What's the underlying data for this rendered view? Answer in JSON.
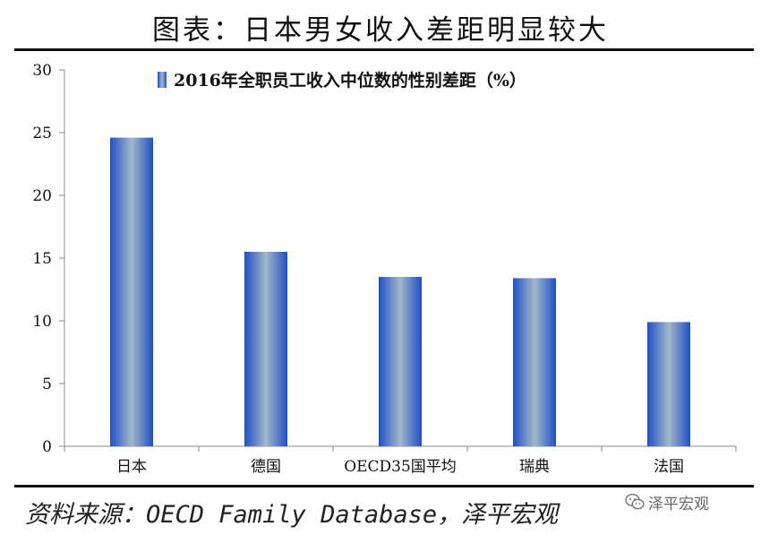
{
  "title": "图表：日本男女收入差距明显较大",
  "source": "资料来源：OECD Family Database，泽平宏观",
  "watermark": {
    "text": "泽平宏观",
    "icon": "wechat-icon"
  },
  "colors": {
    "bar_edge": "#1f4fc4",
    "bar_center": "#a3b8c9",
    "axis": "#888888"
  },
  "chart_data": {
    "type": "bar",
    "categories": [
      "日本",
      "德国",
      "OECD35国平均",
      "瑞典",
      "法国"
    ],
    "series": [
      {
        "name": "2016年全职员工收入中位数的性别差距（%）",
        "values": [
          24.6,
          15.5,
          13.5,
          13.4,
          9.9
        ]
      }
    ],
    "ylim": [
      0,
      30
    ],
    "yticks": [
      0,
      5,
      10,
      15,
      20,
      25,
      30
    ],
    "xlabel": "",
    "ylabel": "",
    "legend": "top-center",
    "grid": false
  }
}
